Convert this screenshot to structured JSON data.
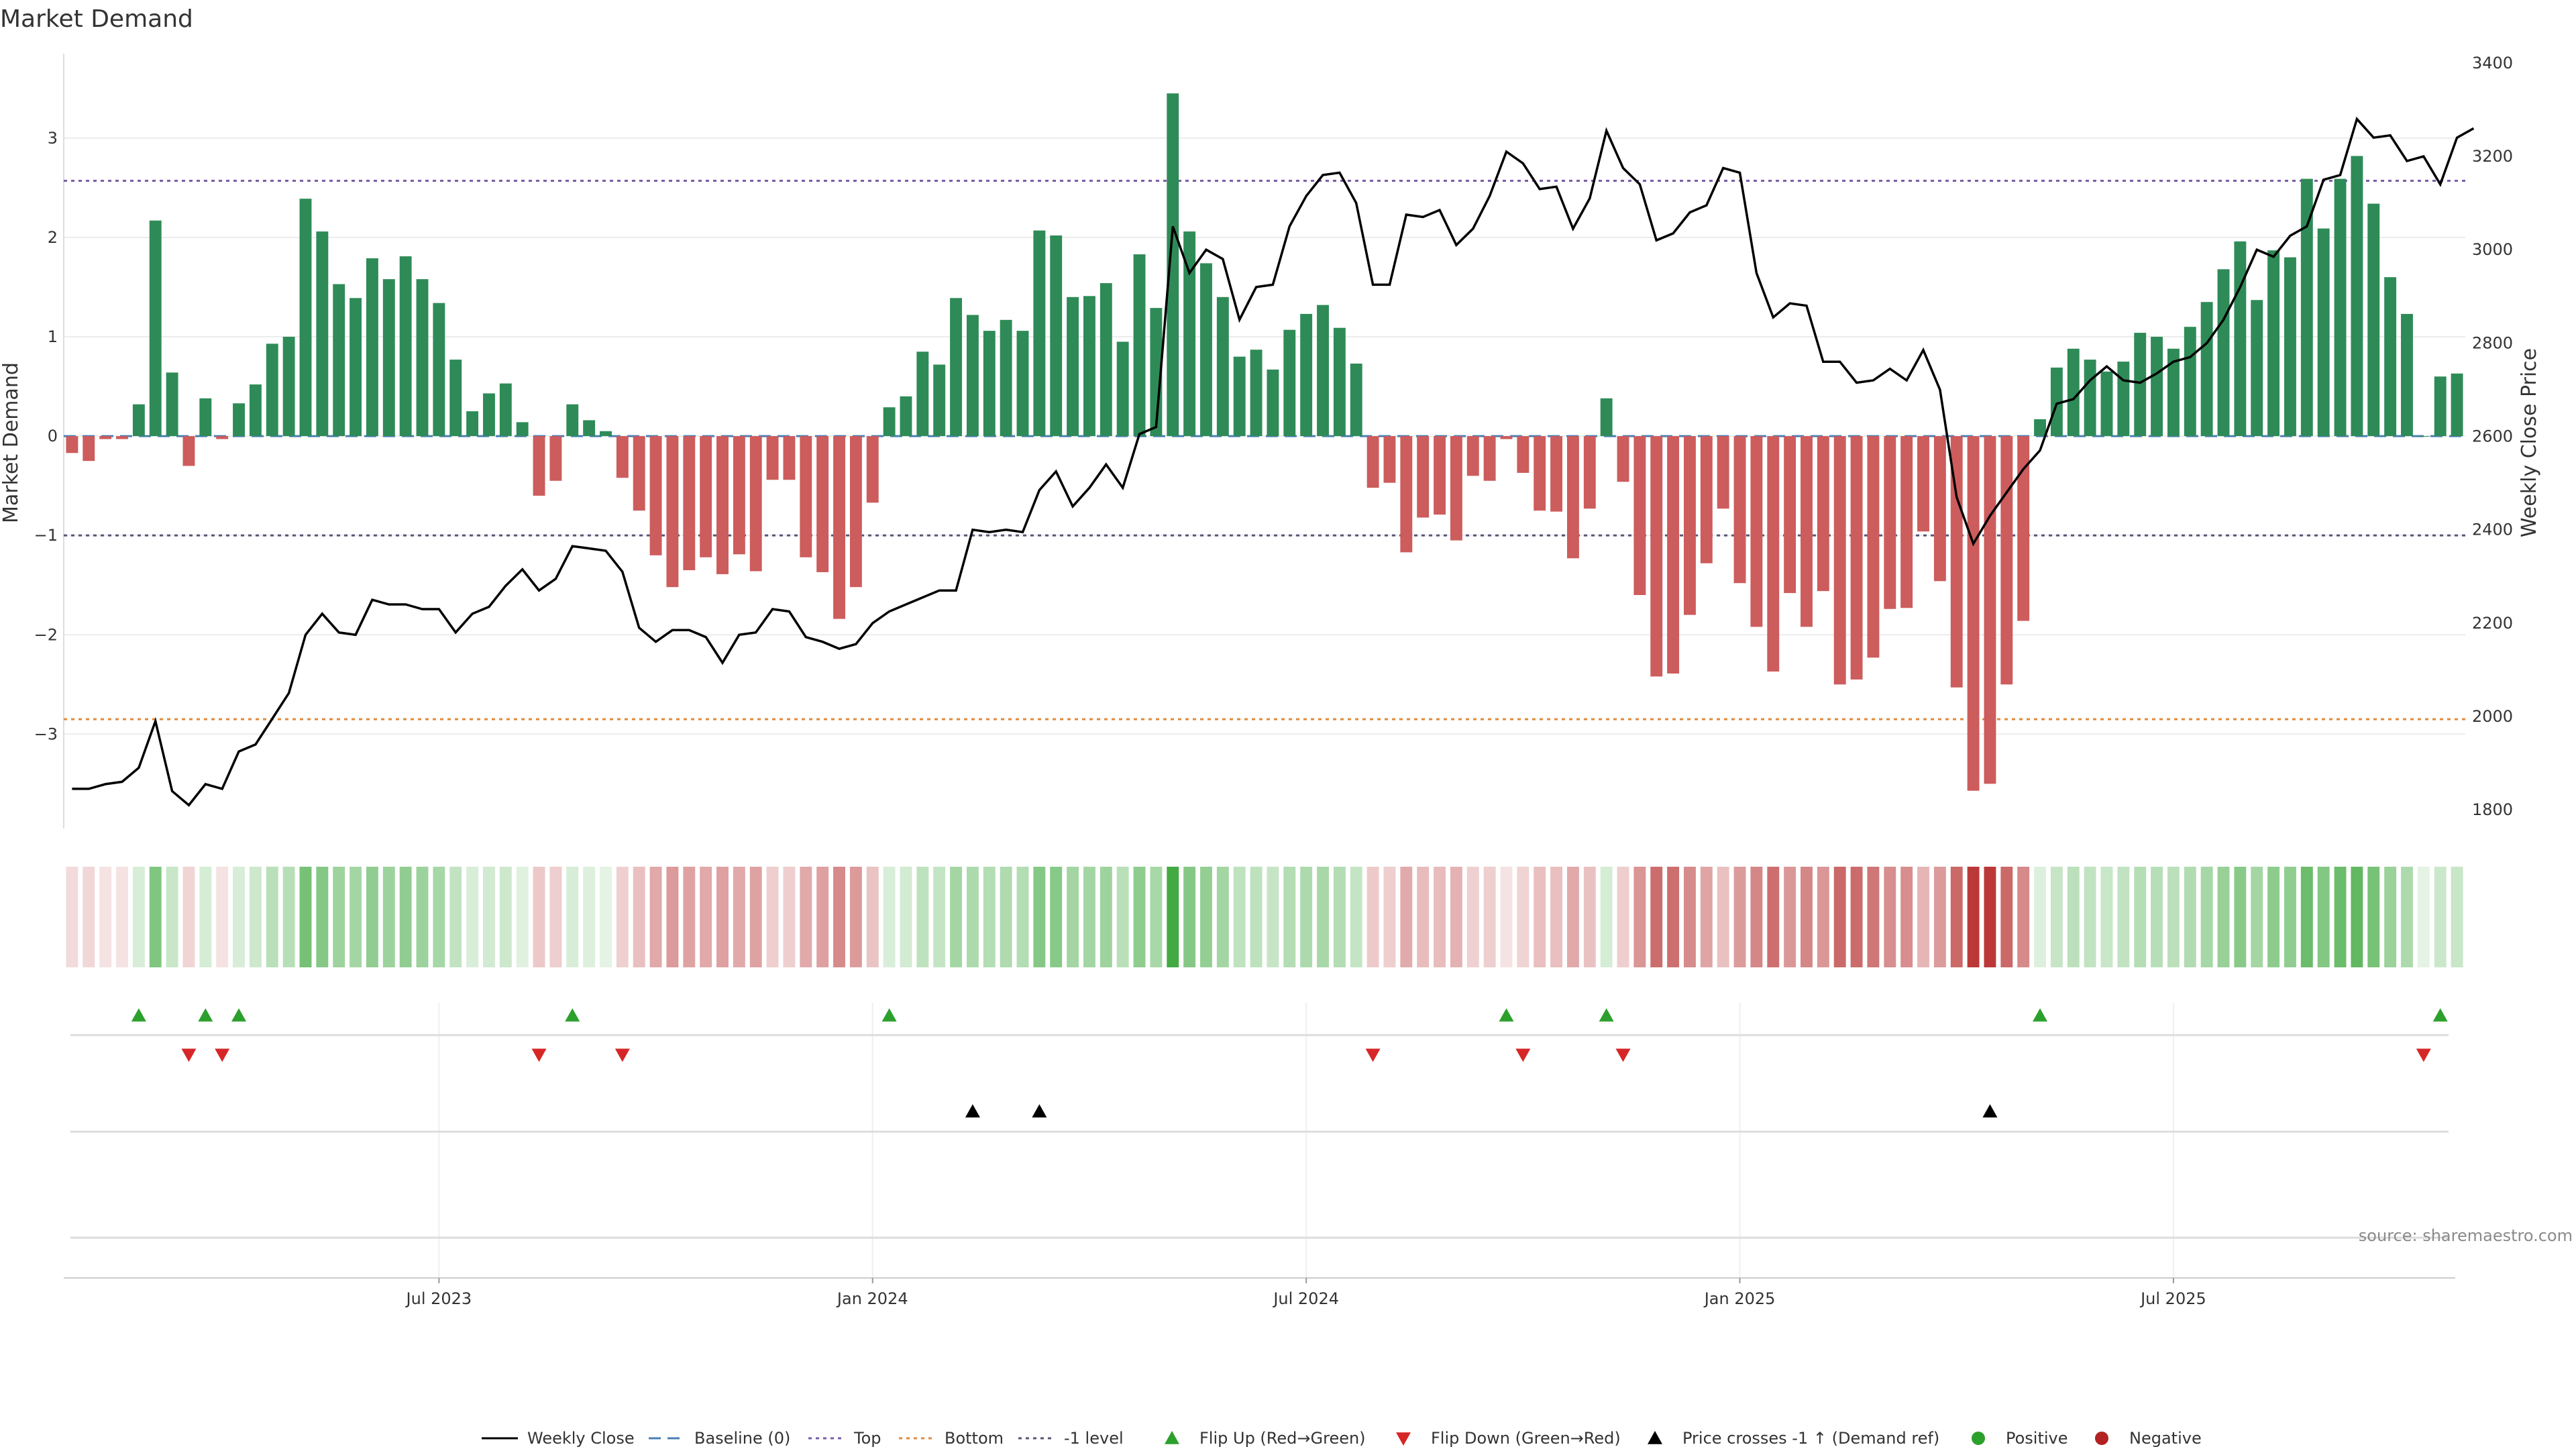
{
  "title": "Market Demand",
  "source": "source: sharemaestro.com",
  "colors": {
    "positive": "#2e8b57",
    "negative": "#cd5c5c",
    "price_line": "#000000",
    "top_line": "#7a5ca8",
    "bottom_line": "#e08a3c",
    "neg1_line": "#555577",
    "baseline": "#4a7fb5",
    "flip_up": "#2ca02c",
    "flip_down": "#d62728",
    "cross": "#000000",
    "dot_pos": "#2ca02c",
    "dot_neg": "#b22222"
  },
  "chart_data": {
    "type": "bar",
    "title": "Market Demand",
    "ylabel": "Market Demand",
    "y2label": "Weekly Close Price",
    "ylim": [
      -3.95,
      3.85
    ],
    "y2lim": [
      1760,
      3420
    ],
    "yticks": [
      3,
      2,
      1,
      0,
      -1,
      -2,
      -3
    ],
    "ytick_labels": [
      "3",
      "2",
      "1",
      "0",
      "−1",
      "−2",
      "−3"
    ],
    "y2ticks": [
      1800,
      2000,
      2200,
      2400,
      2600,
      2800,
      3000,
      3200,
      3400
    ],
    "y2tick_labels": [
      "1800",
      "2000",
      "2200",
      "2400",
      "2600",
      "2800",
      "3000",
      "3200",
      "3400"
    ],
    "xticks": [
      {
        "label": "Jul 2023",
        "index": 22
      },
      {
        "label": "Jan 2024",
        "index": 48
      },
      {
        "label": "Jul 2024",
        "index": 74
      },
      {
        "label": "Jan 2025",
        "index": 100
      },
      {
        "label": "Jul 2025",
        "index": 126
      }
    ],
    "levels": {
      "top": 2.57,
      "bottom": -2.85,
      "minus_one": -1.0,
      "baseline": 0
    },
    "series": [
      {
        "name": "Market Demand",
        "values": [
          -0.17,
          -0.25,
          -0.03,
          -0.03,
          0.32,
          2.17,
          0.64,
          -0.3,
          0.38,
          -0.03,
          0.33,
          0.52,
          0.93,
          1.0,
          2.39,
          2.06,
          1.53,
          1.39,
          1.79,
          1.58,
          1.81,
          1.58,
          1.34,
          0.77,
          0.25,
          0.43,
          0.53,
          0.14,
          -0.6,
          -0.45,
          0.32,
          0.16,
          0.05,
          -0.42,
          -0.75,
          -1.2,
          -1.52,
          -1.35,
          -1.22,
          -1.39,
          -1.19,
          -1.36,
          -0.44,
          -0.44,
          -1.22,
          -1.37,
          -1.84,
          -1.52,
          -0.67,
          0.29,
          0.4,
          0.85,
          0.72,
          1.39,
          1.22,
          1.06,
          1.17,
          1.06,
          2.07,
          2.02,
          1.4,
          1.41,
          1.54,
          0.95,
          1.83,
          1.29,
          3.45,
          2.06,
          1.74,
          1.4,
          0.8,
          0.87,
          0.67,
          1.07,
          1.23,
          1.32,
          1.09,
          0.73,
          -0.52,
          -0.47,
          -1.17,
          -0.82,
          -0.79,
          -1.05,
          -0.4,
          -0.45,
          -0.03,
          -0.37,
          -0.75,
          -0.76,
          -1.23,
          -0.73,
          0.38,
          -0.46,
          -1.6,
          -2.42,
          -2.39,
          -1.8,
          -1.28,
          -0.73,
          -1.48,
          -1.92,
          -2.37,
          -1.58,
          -1.92,
          -1.56,
          -2.5,
          -2.45,
          -2.23,
          -1.74,
          -1.73,
          -0.96,
          -1.46,
          -2.53,
          -3.57,
          -3.5,
          -2.5,
          -1.86,
          0.17,
          0.69,
          0.88,
          0.77,
          0.65,
          0.75,
          1.04,
          1.0,
          0.88,
          1.1,
          1.35,
          1.68,
          1.96,
          1.37,
          1.87,
          1.8,
          2.59,
          2.09,
          2.59,
          2.82,
          2.34,
          1.6,
          1.23,
          0.0,
          0.6,
          0.63
        ]
      },
      {
        "name": "Weekly Close",
        "axis": "right",
        "values": [
          1845,
          1845,
          1855,
          1860,
          1890,
          1990,
          1840,
          1810,
          1855,
          1845,
          1925,
          1940,
          1995,
          2050,
          2175,
          2220,
          2180,
          2175,
          2250,
          2240,
          2240,
          2230,
          2230,
          2180,
          2220,
          2235,
          2280,
          2315,
          2270,
          2295,
          2365,
          2360,
          2355,
          2310,
          2190,
          2160,
          2185,
          2185,
          2170,
          2115,
          2175,
          2180,
          2230,
          2225,
          2170,
          2160,
          2145,
          2155,
          2200,
          2225,
          2240,
          2255,
          2270,
          2270,
          2400,
          2395,
          2400,
          2395,
          2485,
          2525,
          2450,
          2490,
          2540,
          2490,
          2605,
          2620,
          3050,
          2950,
          3000,
          2980,
          2850,
          2920,
          2925,
          3050,
          3115,
          3160,
          3165,
          3100,
          2925,
          2925,
          3075,
          3070,
          3085,
          3010,
          3045,
          3115,
          3210,
          3185,
          3130,
          3135,
          3045,
          3110,
          3255,
          3175,
          3140,
          3020,
          3035,
          3080,
          3095,
          3175,
          3165,
          2950,
          2855,
          2885,
          2880,
          2760,
          2760,
          2715,
          2720,
          2745,
          2720,
          2785,
          2700,
          2470,
          2370,
          2430,
          2480,
          2530,
          2570,
          2670,
          2680,
          2720,
          2750,
          2720,
          2715,
          2735,
          2760,
          2770,
          2800,
          2850,
          2920,
          3000,
          2985,
          3030,
          3050,
          3150,
          3160,
          3280,
          3240,
          3245,
          3190,
          3200,
          3140,
          3240,
          3260
        ]
      }
    ],
    "flip_up_indices": [
      4,
      8,
      10,
      30,
      49,
      86,
      92,
      118,
      142
    ],
    "flip_down_indices": [
      7,
      9,
      28,
      33,
      78,
      87,
      93,
      141
    ],
    "price_cross_indices": [
      54,
      58,
      115
    ]
  },
  "legend": [
    {
      "label": "Weekly Close",
      "kind": "line"
    },
    {
      "label": "Baseline (0)",
      "kind": "dashed"
    },
    {
      "label": "Top",
      "kind": "dotted-purple"
    },
    {
      "label": "Bottom",
      "kind": "dotted-orange"
    },
    {
      "label": "-1 level",
      "kind": "dotted-gray"
    },
    {
      "label": "Flip Up (Red→Green)",
      "kind": "tri-up-green"
    },
    {
      "label": "Flip Down (Green→Red)",
      "kind": "tri-down-red"
    },
    {
      "label": "Price crosses -1 ↑ (Demand ref)",
      "kind": "tri-up-black"
    },
    {
      "label": "Positive",
      "kind": "dot-green"
    },
    {
      "label": "Negative",
      "kind": "dot-red"
    }
  ]
}
